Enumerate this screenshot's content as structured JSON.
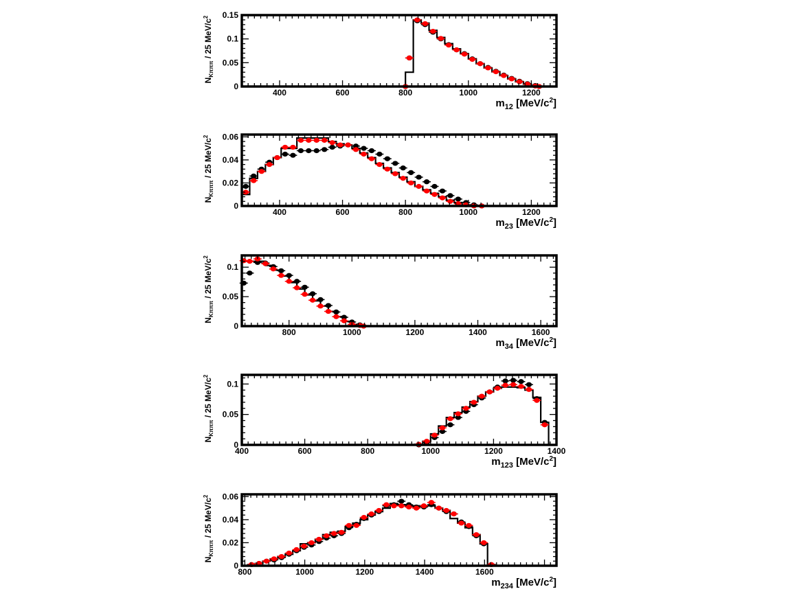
{
  "colors": {
    "black_series": "#000000",
    "red_series": "#ff0000",
    "histogram": "#000000",
    "frame": "#000000"
  },
  "chart_data": [
    {
      "type": "histogram",
      "ylabel_main": "N",
      "ylabel_sub": "Kπππ",
      "ylabel_unit": " / 25 MeV/c",
      "ylabel_sup": "2",
      "xlabel_main": "m",
      "xlabel_sub": "12",
      "xlabel_unit": " [MeV/c",
      "xlabel_sup": "2",
      "xlabel_close": "]",
      "xlim": [
        280,
        1280
      ],
      "ylim": [
        0,
        0.15
      ],
      "xticks": [
        400,
        600,
        800,
        1000,
        1200
      ],
      "yticks": [
        0,
        0.05,
        0.1,
        0.15
      ],
      "ytick_labels": [
        "0",
        "0.05",
        "0.1",
        "0.15"
      ],
      "x": [
        800,
        825,
        850,
        875,
        900,
        925,
        950,
        975,
        1000,
        1025,
        1050,
        1075,
        1100,
        1125,
        1150,
        1175,
        1200,
        1225
      ],
      "hist": [
        0.03,
        0.14,
        0.133,
        0.118,
        0.103,
        0.09,
        0.079,
        0.069,
        0.058,
        0.048,
        0.039,
        0.031,
        0.023,
        0.016,
        0.01,
        0.005,
        0.002,
        0.0
      ],
      "black": [
        0.0,
        0.06,
        0.138,
        0.13,
        0.114,
        0.1,
        0.088,
        0.077,
        0.069,
        0.058,
        0.048,
        0.04,
        0.032,
        0.024,
        0.017,
        0.011,
        0.006,
        0.002,
        0.0
      ],
      "red": [
        0.0,
        0.06,
        0.14,
        0.132,
        0.116,
        0.101,
        0.087,
        0.077,
        0.068,
        0.057,
        0.048,
        0.039,
        0.031,
        0.023,
        0.016,
        0.01,
        0.005,
        0.001,
        0.0
      ],
      "points_x": [
        800,
        812.5,
        837.5,
        862.5,
        887.5,
        912.5,
        937.5,
        962.5,
        987.5,
        1012.5,
        1037.5,
        1062.5,
        1087.5,
        1112.5,
        1137.5,
        1162.5,
        1187.5,
        1212.5,
        1225
      ]
    },
    {
      "type": "histogram",
      "ylabel_main": "N",
      "ylabel_sub": "Kπππ",
      "ylabel_unit": " / 25 MeV/c",
      "ylabel_sup": "2",
      "xlabel_main": "m",
      "xlabel_sub": "23",
      "xlabel_unit": " [MeV/c",
      "xlabel_sup": "2",
      "xlabel_close": "]",
      "xlim": [
        280,
        1280
      ],
      "ylim": [
        0,
        0.062
      ],
      "xticks": [
        400,
        600,
        800,
        1000,
        1200
      ],
      "yticks": [
        0,
        0.02,
        0.04,
        0.06
      ],
      "ytick_labels": [
        "0",
        "0.02",
        "0.04",
        "0.06"
      ],
      "x": [
        280,
        305,
        330,
        355,
        380,
        405,
        430,
        455,
        480,
        505,
        530,
        555,
        580,
        605,
        630,
        655,
        680,
        705,
        730,
        755,
        780,
        805,
        830,
        855,
        880,
        905,
        930,
        955,
        980,
        1005,
        1030
      ],
      "hist": [
        0.01,
        0.024,
        0.03,
        0.036,
        0.042,
        0.05,
        0.05,
        0.059,
        0.059,
        0.059,
        0.059,
        0.056,
        0.054,
        0.053,
        0.05,
        0.046,
        0.042,
        0.037,
        0.033,
        0.029,
        0.025,
        0.021,
        0.017,
        0.014,
        0.011,
        0.008,
        0.005,
        0.003,
        0.001,
        0.0
      ],
      "points_x": [
        292.5,
        317.5,
        342.5,
        367.5,
        392.5,
        417.5,
        442.5,
        467.5,
        492.5,
        517.5,
        542.5,
        567.5,
        592.5,
        617.5,
        642.5,
        667.5,
        692.5,
        717.5,
        742.5,
        767.5,
        792.5,
        817.5,
        842.5,
        867.5,
        892.5,
        917.5,
        942.5,
        967.5,
        992.5,
        1017.5,
        1042.5
      ],
      "black": [
        0.017,
        0.026,
        0.032,
        0.038,
        0.042,
        0.045,
        0.044,
        0.048,
        0.048,
        0.048,
        0.049,
        0.051,
        0.052,
        0.053,
        0.052,
        0.05,
        0.048,
        0.045,
        0.041,
        0.037,
        0.033,
        0.029,
        0.025,
        0.021,
        0.017,
        0.013,
        0.009,
        0.006,
        0.003,
        0.001,
        0.0
      ],
      "red": [
        0.012,
        0.022,
        0.03,
        0.036,
        0.042,
        0.051,
        0.051,
        0.057,
        0.057,
        0.057,
        0.057,
        0.055,
        0.053,
        0.053,
        0.049,
        0.045,
        0.041,
        0.036,
        0.032,
        0.028,
        0.024,
        0.02,
        0.017,
        0.013,
        0.01,
        0.007,
        0.004,
        0.002,
        0.001,
        0.0,
        0.0
      ]
    },
    {
      "type": "histogram",
      "ylabel_main": "N",
      "ylabel_sub": "Kπππ",
      "ylabel_unit": " / 25 MeV/c",
      "ylabel_sup": "2",
      "xlabel_main": "m",
      "xlabel_sub": "34",
      "xlabel_unit": " [MeV/c",
      "xlabel_sup": "2",
      "xlabel_close": "]",
      "xlim": [
        650,
        1650
      ],
      "ylim": [
        0,
        0.12
      ],
      "xticks": [
        800,
        1000,
        1200,
        1400,
        1600
      ],
      "yticks": [
        0,
        0.05,
        0.1
      ],
      "ytick_labels": [
        "0",
        "0.05",
        "0.1"
      ],
      "x": [
        650,
        675,
        700,
        725,
        750,
        775,
        800,
        825,
        850,
        875,
        900,
        925,
        950,
        975,
        1000,
        1025,
        1050
      ],
      "hist": [
        0.11,
        0.11,
        0.11,
        0.103,
        0.095,
        0.085,
        0.074,
        0.063,
        0.053,
        0.043,
        0.034,
        0.025,
        0.016,
        0.008,
        0.003,
        0.0
      ],
      "points_x": [
        656,
        675,
        700,
        725,
        750,
        775,
        800,
        825,
        850,
        875,
        900,
        925,
        950,
        975,
        1000,
        1025,
        1037
      ],
      "black": [
        0.073,
        0.09,
        0.108,
        0.107,
        0.101,
        0.094,
        0.086,
        0.076,
        0.066,
        0.055,
        0.045,
        0.035,
        0.024,
        0.015,
        0.007,
        0.002,
        0.0
      ],
      "red": [
        0.111,
        0.11,
        0.114,
        0.106,
        0.097,
        0.086,
        0.076,
        0.065,
        0.054,
        0.044,
        0.034,
        0.025,
        0.016,
        0.009,
        0.003,
        0.001,
        0.0
      ]
    },
    {
      "type": "histogram",
      "ylabel_main": "N",
      "ylabel_sub": "Kπππ",
      "ylabel_unit": " / 25 MeV/c",
      "ylabel_sup": "2",
      "xlabel_main": "m",
      "xlabel_sub": "123",
      "xlabel_unit": " [MeV/c",
      "xlabel_sup": "2",
      "xlabel_close": "]",
      "xlim": [
        400,
        1400
      ],
      "ylim": [
        0,
        0.115
      ],
      "xticks": [
        400,
        600,
        800,
        1000,
        1200,
        1400
      ],
      "yticks": [
        0,
        0.05,
        0.1
      ],
      "ytick_labels": [
        "0",
        "0.05",
        "0.1"
      ],
      "x": [
        950,
        975,
        1000,
        1025,
        1050,
        1075,
        1100,
        1125,
        1150,
        1175,
        1200,
        1225,
        1250,
        1275,
        1300,
        1325,
        1350,
        1375
      ],
      "hist": [
        0.001,
        0.006,
        0.018,
        0.031,
        0.045,
        0.053,
        0.062,
        0.071,
        0.08,
        0.087,
        0.093,
        0.095,
        0.095,
        0.094,
        0.09,
        0.078,
        0.037
      ],
      "points_x": [
        962.5,
        987.5,
        1012.5,
        1037.5,
        1062.5,
        1087.5,
        1112.5,
        1137.5,
        1162.5,
        1187.5,
        1212.5,
        1237.5,
        1262.5,
        1287.5,
        1312.5,
        1337.5,
        1362.5
      ],
      "black": [
        0.0,
        0.004,
        0.012,
        0.022,
        0.033,
        0.045,
        0.055,
        0.066,
        0.077,
        0.087,
        0.095,
        0.105,
        0.106,
        0.104,
        0.099,
        0.076,
        0.037
      ],
      "red": [
        0.001,
        0.006,
        0.016,
        0.028,
        0.043,
        0.051,
        0.06,
        0.07,
        0.08,
        0.087,
        0.093,
        0.098,
        0.099,
        0.096,
        0.091,
        0.073,
        0.033
      ]
    },
    {
      "type": "histogram",
      "ylabel_main": "N",
      "ylabel_sub": "Kπππ",
      "ylabel_unit": " / 25 MeV/c",
      "ylabel_sup": "2",
      "xlabel_main": "m",
      "xlabel_sub": "234",
      "xlabel_unit": " [MeV/c",
      "xlabel_sup": "2",
      "xlabel_close": "]",
      "xlim": [
        790,
        1840
      ],
      "ylim": [
        0,
        0.062
      ],
      "xticks": [
        800,
        1000,
        1200,
        1400,
        1600
      ],
      "yticks": [
        0,
        0.02,
        0.04,
        0.06
      ],
      "ytick_labels": [
        "0",
        "0.02",
        "0.04",
        "0.06"
      ],
      "x": [
        810,
        835,
        860,
        885,
        910,
        935,
        960,
        985,
        1010,
        1035,
        1060,
        1085,
        1110,
        1135,
        1160,
        1185,
        1210,
        1235,
        1260,
        1285,
        1310,
        1335,
        1360,
        1385,
        1410,
        1435,
        1460,
        1485,
        1510,
        1535,
        1560,
        1585,
        1610,
        1635
      ],
      "hist": [
        0.001,
        0.002,
        0.004,
        0.006,
        0.008,
        0.01,
        0.013,
        0.019,
        0.02,
        0.023,
        0.027,
        0.029,
        0.03,
        0.034,
        0.037,
        0.04,
        0.044,
        0.047,
        0.05,
        0.054,
        0.053,
        0.052,
        0.052,
        0.052,
        0.052,
        0.05,
        0.048,
        0.041,
        0.037,
        0.033,
        0.027,
        0.019,
        0.001
      ],
      "points_x": [
        822.5,
        847.5,
        872.5,
        897.5,
        922.5,
        947.5,
        972.5,
        997.5,
        1022.5,
        1047.5,
        1072.5,
        1097.5,
        1122.5,
        1147.5,
        1172.5,
        1197.5,
        1222.5,
        1247.5,
        1272.5,
        1297.5,
        1322.5,
        1347.5,
        1372.5,
        1397.5,
        1422.5,
        1447.5,
        1472.5,
        1497.5,
        1522.5,
        1547.5,
        1572.5,
        1597.5,
        1622.5
      ],
      "black": [
        0.001,
        0.002,
        0.004,
        0.005,
        0.007,
        0.01,
        0.013,
        0.016,
        0.018,
        0.021,
        0.024,
        0.026,
        0.028,
        0.033,
        0.036,
        0.041,
        0.044,
        0.047,
        0.052,
        0.053,
        0.056,
        0.053,
        0.051,
        0.051,
        0.053,
        0.05,
        0.047,
        0.045,
        0.038,
        0.034,
        0.026,
        0.019,
        0.001
      ],
      "red": [
        0.001,
        0.002,
        0.004,
        0.006,
        0.008,
        0.011,
        0.014,
        0.017,
        0.02,
        0.023,
        0.026,
        0.028,
        0.029,
        0.035,
        0.035,
        0.042,
        0.045,
        0.048,
        0.053,
        0.052,
        0.052,
        0.051,
        0.05,
        0.052,
        0.055,
        0.05,
        0.048,
        0.045,
        0.037,
        0.035,
        0.027,
        0.02,
        0.001
      ]
    }
  ]
}
